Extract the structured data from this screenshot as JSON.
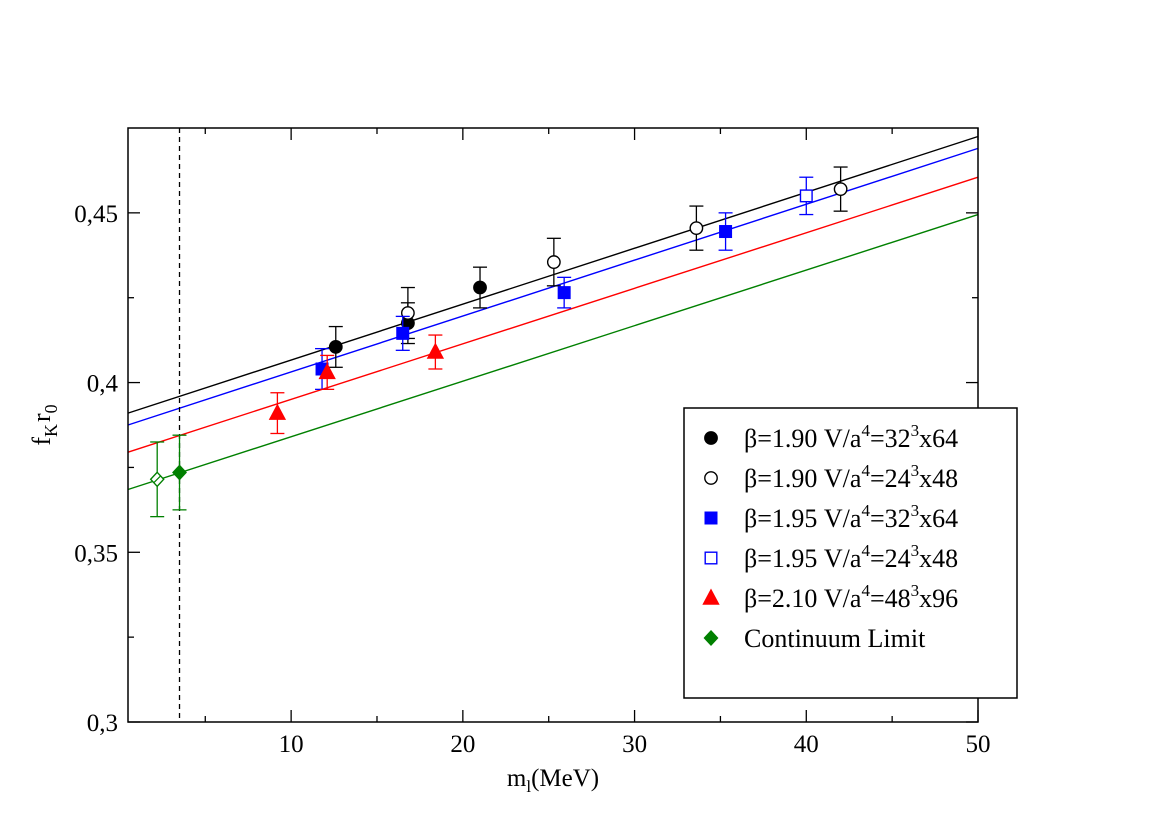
{
  "chart_data": {
    "type": "scatter",
    "xlabel": {
      "base": "m",
      "sub": "l",
      "rest": "(MeV)"
    },
    "ylabel": {
      "a": "f",
      "a_sub": "K",
      "b": "r",
      "b_sub": "0"
    },
    "xlim": [
      0.5,
      50
    ],
    "ylim": [
      0.3,
      0.475
    ],
    "xticks": [
      {
        "v": 10,
        "label": "10"
      },
      {
        "v": 20,
        "label": "20"
      },
      {
        "v": 30,
        "label": "30"
      },
      {
        "v": 40,
        "label": "40"
      },
      {
        "v": 50,
        "label": "50"
      }
    ],
    "yticks": [
      {
        "v": 0.3,
        "label": "0,3"
      },
      {
        "v": 0.35,
        "label": "0,35"
      },
      {
        "v": 0.4,
        "label": "0,4"
      },
      {
        "v": 0.45,
        "label": "0,45"
      }
    ],
    "xminor": [
      5,
      15,
      25,
      35,
      45
    ],
    "yminor": [
      0.325,
      0.375,
      0.425
    ],
    "vline_x": 3.5,
    "fit_lines": [
      {
        "name": "beta 1.90",
        "color": "#000000",
        "x": [
          0.5,
          50
        ],
        "y": [
          0.391,
          0.4725
        ]
      },
      {
        "name": "beta 1.95",
        "color": "#0000ff",
        "x": [
          0.5,
          50
        ],
        "y": [
          0.3875,
          0.469
        ]
      },
      {
        "name": "beta 2.10",
        "color": "#ff0000",
        "x": [
          0.5,
          50
        ],
        "y": [
          0.3795,
          0.4605
        ]
      },
      {
        "name": "continuum",
        "color": "#008000",
        "x": [
          0.5,
          50
        ],
        "y": [
          0.3685,
          0.4495
        ]
      }
    ],
    "series": [
      {
        "name": "b190_32",
        "label": {
          "pre": "β=1.90 V/a",
          "sup1": "4",
          "mid": "=32",
          "sup2": "3",
          "post": "x64"
        },
        "marker": "circle",
        "filled": true,
        "color": "#000000",
        "points": [
          {
            "x": 12.6,
            "y": 0.4105,
            "err": 0.006
          },
          {
            "x": 16.8,
            "y": 0.4175,
            "err": 0.006
          },
          {
            "x": 21.0,
            "y": 0.428,
            "err": 0.006
          }
        ]
      },
      {
        "name": "b190_24",
        "label": {
          "pre": "β=1.90 V/a",
          "sup1": "4",
          "mid": "=24",
          "sup2": "3",
          "post": "x48"
        },
        "marker": "circle",
        "filled": false,
        "color": "#000000",
        "points": [
          {
            "x": 16.8,
            "y": 0.4205,
            "err": 0.0075
          },
          {
            "x": 25.3,
            "y": 0.4355,
            "err": 0.007
          },
          {
            "x": 33.6,
            "y": 0.4455,
            "err": 0.0065
          },
          {
            "x": 42.0,
            "y": 0.457,
            "err": 0.0065
          }
        ]
      },
      {
        "name": "b195_32",
        "label": {
          "pre": "β=1.95 V/a",
          "sup1": "4",
          "mid": "=32",
          "sup2": "3",
          "post": "x64"
        },
        "marker": "square",
        "filled": true,
        "color": "#0000ff",
        "points": [
          {
            "x": 11.8,
            "y": 0.404,
            "err": 0.006
          },
          {
            "x": 16.5,
            "y": 0.4145,
            "err": 0.005
          },
          {
            "x": 25.9,
            "y": 0.4265,
            "err": 0.0045
          },
          {
            "x": 35.3,
            "y": 0.4445,
            "err": 0.0055
          }
        ]
      },
      {
        "name": "b195_24",
        "label": {
          "pre": "β=1.95 V/a",
          "sup1": "4",
          "mid": "=24",
          "sup2": "3",
          "post": "x48"
        },
        "marker": "square",
        "filled": false,
        "color": "#0000ff",
        "points": [
          {
            "x": 40.0,
            "y": 0.455,
            "err": 0.0055
          }
        ]
      },
      {
        "name": "b210_48",
        "label": {
          "pre": "β=2.10 V/a",
          "sup1": "4",
          "mid": "=48",
          "sup2": "3",
          "post": "x96"
        },
        "marker": "triangle",
        "filled": true,
        "color": "#ff0000",
        "points": [
          {
            "x": 9.2,
            "y": 0.391,
            "err": 0.006
          },
          {
            "x": 12.1,
            "y": 0.403,
            "err": 0.005
          },
          {
            "x": 18.4,
            "y": 0.409,
            "err": 0.005
          }
        ]
      },
      {
        "name": "continuum",
        "label": {
          "pre": "Continuum Limit",
          "sup1": "",
          "mid": "",
          "sup2": "",
          "post": ""
        },
        "marker": "diamond",
        "filled": true,
        "color": "#008000",
        "points": [
          {
            "x": 3.5,
            "y": 0.3735,
            "err": 0.011
          }
        ]
      },
      {
        "name": "continuum_alt",
        "label": null,
        "marker": "diamond",
        "filled": false,
        "color": "#008000",
        "points": [
          {
            "x": 2.2,
            "y": 0.3715,
            "err": 0.011
          }
        ]
      }
    ]
  }
}
